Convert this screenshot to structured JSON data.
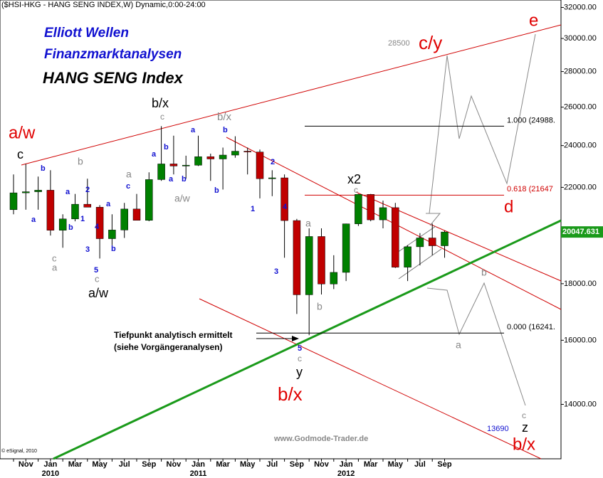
{
  "chart_data": {
    "type": "candlestick",
    "title": "($HSI-HKG - HANG SENG INDEX,W) Dynamic,0:00-24:00",
    "categories": [
      null,
      "Nov",
      null,
      "Jan",
      null,
      "Mar",
      null,
      "May",
      null,
      "Jul",
      null,
      "Sep",
      null,
      "Nov",
      null,
      "Jan",
      null,
      "Mar",
      null,
      "May",
      null,
      "Jul",
      null,
      "Sep",
      null,
      "Nov",
      null,
      "Jan",
      null,
      "Mar",
      null,
      "May",
      null,
      "Jul",
      null,
      "Sep"
    ],
    "category_years": [
      null,
      null,
      null,
      "2010",
      null,
      null,
      null,
      null,
      null,
      null,
      null,
      null,
      null,
      null,
      null,
      "2011",
      null,
      null,
      null,
      null,
      null,
      null,
      null,
      null,
      null,
      null,
      null,
      "2012",
      null,
      null,
      null,
      null,
      null,
      null,
      null,
      null
    ],
    "open": [
      21000,
      21750,
      21800,
      21870,
      20120,
      20600,
      21240,
      21110,
      19770,
      20130,
      21030,
      20540,
      22360,
      23100,
      23000,
      23040,
      23450,
      23340,
      23530,
      23720,
      23680,
      22400,
      22440,
      20530,
      17590,
      19860,
      17990,
      18430,
      20390,
      21680,
      20560,
      21090,
      18630,
      19440,
      19800,
      19480
    ],
    "high": [
      22600,
      23100,
      22500,
      22800,
      20800,
      21700,
      22400,
      21200,
      20800,
      21300,
      21700,
      22700,
      24990,
      24500,
      23500,
      24500,
      23600,
      23900,
      24470,
      23900,
      23800,
      22800,
      22600,
      20600,
      20200,
      20200,
      19100,
      20400,
      21700,
      21700,
      21400,
      21300,
      19500,
      20000,
      20400,
      20100
    ],
    "low": [
      20800,
      21000,
      21000,
      19900,
      19400,
      20500,
      21200,
      18970,
      19500,
      19800,
      20600,
      20500,
      22300,
      22600,
      22400,
      23000,
      22300,
      21900,
      23400,
      22600,
      21500,
      21600,
      19000,
      16900,
      16170,
      17600,
      17800,
      18100,
      20300,
      20500,
      20200,
      18600,
      18100,
      18700,
      19100,
      19000
    ],
    "close": [
      21750,
      21800,
      21870,
      20120,
      20600,
      21240,
      21110,
      19770,
      20130,
      21030,
      20540,
      22360,
      23100,
      23000,
      23040,
      23450,
      23340,
      23530,
      23720,
      23680,
      22400,
      22440,
      20530,
      17590,
      19860,
      17990,
      18430,
      20390,
      21680,
      20560,
      21090,
      18630,
      19440,
      19800,
      19480,
      20047
    ],
    "up_color": "#008000",
    "down_color": "#c00000",
    "log_scale": true,
    "ylim": [
      12500,
      32500
    ],
    "yticks": [
      {
        "value": 14000,
        "label": "14000.00"
      },
      {
        "value": 16000,
        "label": "16000.00"
      },
      {
        "value": 18000,
        "label": "18000.00"
      },
      {
        "value": 20000,
        "label": "20000.00"
      },
      {
        "value": 22000,
        "label": "22000.00"
      },
      {
        "value": 24000,
        "label": "24000.00"
      },
      {
        "value": 26000,
        "label": "26000.00"
      },
      {
        "value": 28000,
        "label": "28000.00"
      },
      {
        "value": 30000,
        "label": "30000.00"
      },
      {
        "value": 32000,
        "label": "32000.00"
      }
    ],
    "last_price": 20047.631,
    "levels": [
      {
        "value": 24988,
        "label": "1.000 (24988.",
        "color": "#000000"
      },
      {
        "value": 21647,
        "label": "0.618 (21647",
        "color": "#d00000"
      },
      {
        "value": 16241,
        "label": "0.000 (16241.",
        "color": "#000000"
      }
    ],
    "annotations": [
      "Elliott Wellen",
      "Finanzmarktanalysen",
      "HANG SENG Index",
      "a/w",
      "b/x",
      "c/y",
      "e",
      "d",
      "b/x",
      "c",
      "b/x",
      "a/w",
      "x2",
      "y",
      "z",
      "c",
      "b/x",
      "c",
      "a",
      "b",
      "a/w",
      "a",
      "b",
      "c",
      "a",
      "c",
      "a",
      "b",
      "c",
      "c",
      "28500",
      "b",
      "a",
      "a",
      "b",
      "1",
      "2",
      "3",
      "4",
      "5",
      "a",
      "b",
      "c",
      "a",
      "b",
      "a",
      "b",
      "a",
      "b",
      "b",
      "2",
      "1",
      "4",
      "3",
      "5",
      "13690",
      "Tiefpunkt analytisch ermittelt",
      "(siehe Vorgängeranalysen)",
      "www.Godmode-Trader.de",
      "© eSignal, 2010"
    ]
  }
}
